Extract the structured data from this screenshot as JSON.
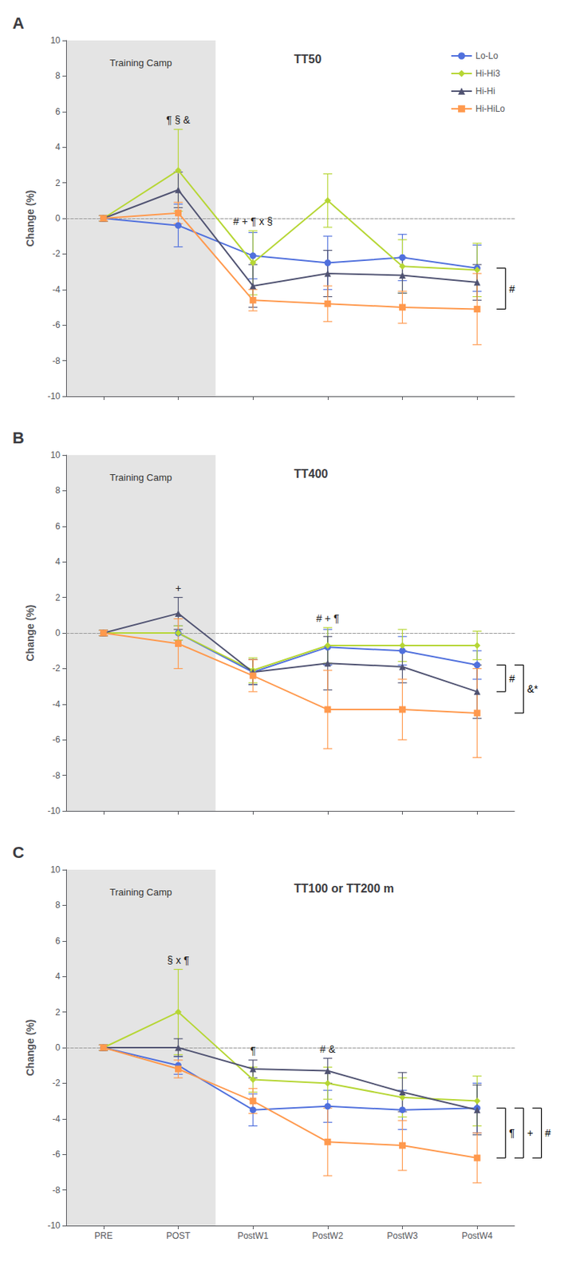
{
  "chart_data": [
    {
      "type": "line",
      "panel_label": "A",
      "title": "TT50",
      "categories": [
        "PRE",
        "POST",
        "PostW1",
        "PostW2",
        "PostW3",
        "PostW4"
      ],
      "ylabel": "Change (%)",
      "ylim": [
        -10,
        10
      ],
      "yticks": [
        -10,
        -8,
        -6,
        -4,
        -2,
        0,
        2,
        4,
        6,
        8,
        10
      ],
      "grid": false,
      "tick_labels": "y",
      "legend": "upper right",
      "series": [
        {
          "name": "Lo-Lo",
          "marker": "circle",
          "values": [
            0,
            -0.4,
            -2.1,
            -2.5,
            -2.2,
            -2.8
          ],
          "errors": [
            0.15,
            1.2,
            1.3,
            1.5,
            1.3,
            1.3
          ]
        },
        {
          "name": "Hi-Hi3",
          "marker": "diamond",
          "values": [
            0,
            2.7,
            -2.5,
            1.0,
            -2.7,
            -2.9
          ],
          "errors": [
            0.15,
            2.3,
            1.8,
            1.5,
            1.5,
            1.5
          ]
        },
        {
          "name": "Hi-Hi",
          "marker": "triangle",
          "values": [
            0,
            1.6,
            -3.8,
            -3.1,
            -3.2,
            -3.6
          ],
          "errors": [
            0.15,
            1.0,
            1.2,
            1.3,
            1.0,
            1.0
          ]
        },
        {
          "name": "Hi-HiLo",
          "marker": "square",
          "values": [
            0,
            0.3,
            -4.6,
            -4.8,
            -5.0,
            -5.1
          ],
          "errors": [
            0.15,
            0.6,
            0.6,
            1.0,
            0.9,
            2.0
          ]
        }
      ],
      "shaded": {
        "from": "PRE",
        "to": "POST",
        "label": "Training Camp"
      },
      "annotations": [
        {
          "text": "¶ § &",
          "category": "POST"
        },
        {
          "text": "# + ¶ x §",
          "category": "PostW1"
        }
      ],
      "brackets": [
        {
          "text": "#",
          "from": "Lo-Lo",
          "to": "Hi-HiLo"
        }
      ]
    },
    {
      "type": "line",
      "panel_label": "B",
      "title": "TT400",
      "categories": [
        "PRE",
        "POST",
        "PostW1",
        "PostW2",
        "PostW3",
        "PostW4"
      ],
      "ylabel": "Change (%)",
      "ylim": [
        -10,
        10
      ],
      "yticks": [
        -10,
        -8,
        -6,
        -4,
        -2,
        0,
        2,
        4,
        6,
        8,
        10
      ],
      "grid": false,
      "tick_labels": "y",
      "series": [
        {
          "name": "Lo-Lo",
          "marker": "circle",
          "values": [
            0,
            0.0,
            -2.2,
            -0.8,
            -1.0,
            -1.8
          ],
          "errors": [
            0.15,
            0.4,
            0.7,
            1.0,
            0.8,
            0.8
          ]
        },
        {
          "name": "Hi-Hi3",
          "marker": "diamond",
          "values": [
            0,
            0.0,
            -2.1,
            -0.7,
            -0.7,
            -0.7
          ],
          "errors": [
            0.15,
            0.4,
            0.7,
            1.0,
            0.9,
            0.8
          ]
        },
        {
          "name": "Hi-Hi",
          "marker": "triangle",
          "values": [
            0,
            1.1,
            -2.2,
            -1.7,
            -1.9,
            -3.3
          ],
          "errors": [
            0.15,
            0.9,
            0.7,
            1.5,
            0.9,
            1.5
          ]
        },
        {
          "name": "Hi-HiLo",
          "marker": "square",
          "values": [
            0,
            -0.6,
            -2.4,
            -4.3,
            -4.3,
            -4.5
          ],
          "errors": [
            0.15,
            1.4,
            0.9,
            2.2,
            1.7,
            2.5
          ]
        }
      ],
      "shaded": {
        "from": "PRE",
        "to": "POST",
        "label": "Training Camp"
      },
      "annotations": [
        {
          "text": "+",
          "category": "POST"
        },
        {
          "text": "# + ¶",
          "category": "PostW2"
        }
      ],
      "brackets": [
        {
          "text": "#",
          "from": "Lo-Lo",
          "to": "Hi-Hi"
        },
        {
          "text": "&*",
          "from": "Lo-Lo",
          "to": "Hi-HiLo"
        }
      ]
    },
    {
      "type": "line",
      "panel_label": "C",
      "title": "TT100 or TT200 m",
      "categories": [
        "PRE",
        "POST",
        "PostW1",
        "PostW2",
        "PostW3",
        "PostW4"
      ],
      "ylabel": "Change (%)",
      "ylim": [
        -10,
        10
      ],
      "yticks": [
        -10,
        -8,
        -6,
        -4,
        -2,
        0,
        2,
        4,
        6,
        8,
        10
      ],
      "grid": false,
      "series": [
        {
          "name": "Lo-Lo",
          "marker": "circle",
          "values": [
            0,
            -1.0,
            -3.5,
            -3.3,
            -3.5,
            -3.4
          ],
          "errors": [
            0.15,
            0.5,
            0.9,
            0.9,
            1.1,
            1.4
          ]
        },
        {
          "name": "Hi-Hi3",
          "marker": "diamond",
          "values": [
            0,
            2.0,
            -1.8,
            -2.0,
            -2.8,
            -3.0
          ],
          "errors": [
            0.15,
            2.4,
            0.7,
            0.9,
            1.1,
            1.4
          ]
        },
        {
          "name": "Hi-Hi",
          "marker": "triangle",
          "values": [
            0,
            0.0,
            -1.2,
            -1.3,
            -2.5,
            -3.5
          ],
          "errors": [
            0.15,
            0.5,
            0.5,
            0.7,
            1.1,
            1.4
          ]
        },
        {
          "name": "Hi-HiLo",
          "marker": "square",
          "values": [
            0,
            -1.2,
            -3.0,
            -5.3,
            -5.5,
            -6.2
          ],
          "errors": [
            0.15,
            0.5,
            0.7,
            1.9,
            1.4,
            1.4
          ]
        }
      ],
      "shaded": {
        "from": "PRE",
        "to": "POST",
        "label": "Training Camp"
      },
      "annotations": [
        {
          "text": "§ x ¶",
          "category": "POST"
        },
        {
          "text": "¶",
          "category": "PostW1"
        },
        {
          "text": "# &",
          "category": "PostW2"
        }
      ],
      "brackets": [
        {
          "text": "¶",
          "from": "Lo-Lo",
          "to": "Hi-HiLo"
        },
        {
          "text": "+",
          "from": "Lo-Lo",
          "to": "Hi-HiLo"
        },
        {
          "text": "#",
          "from": "Lo-Lo",
          "to": "Hi-HiLo"
        }
      ]
    }
  ]
}
